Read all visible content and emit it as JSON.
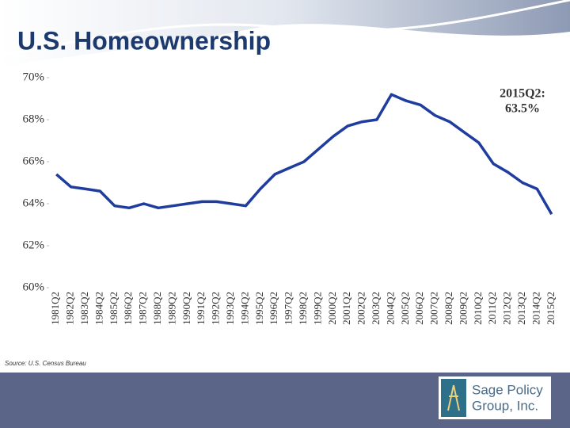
{
  "chart_data": {
    "type": "line",
    "title": "U.S. Homeownership",
    "categories": [
      "1981Q2",
      "1982Q2",
      "1983Q2",
      "1984Q2",
      "1985Q2",
      "1986Q2",
      "1987Q2",
      "1988Q2",
      "1989Q2",
      "1990Q2",
      "1991Q2",
      "1992Q2",
      "1993Q2",
      "1994Q2",
      "1995Q2",
      "1996Q2",
      "1997Q2",
      "1998Q2",
      "1999Q2",
      "2000Q2",
      "2001Q2",
      "2002Q2",
      "2003Q2",
      "2004Q2",
      "2005Q2",
      "2006Q2",
      "2007Q2",
      "2008Q2",
      "2009Q2",
      "2010Q2",
      "2011Q2",
      "2012Q2",
      "2013Q2",
      "2014Q2",
      "2015Q2"
    ],
    "values": [
      65.4,
      64.8,
      64.7,
      64.6,
      63.9,
      63.8,
      64.0,
      63.8,
      63.9,
      64.0,
      64.1,
      64.1,
      64.0,
      63.9,
      64.7,
      65.4,
      65.7,
      66.0,
      66.6,
      67.2,
      67.7,
      67.9,
      68.0,
      69.2,
      68.9,
      68.7,
      68.2,
      67.9,
      67.4,
      66.9,
      65.9,
      65.5,
      65.0,
      64.7,
      63.5
    ],
    "color": "#1f3d9e",
    "ylim": [
      60,
      70
    ],
    "yticks": [
      {
        "value": 60,
        "label": "60%"
      },
      {
        "value": 62,
        "label": "62%"
      },
      {
        "value": 64,
        "label": "64%"
      },
      {
        "value": 66,
        "label": "66%"
      },
      {
        "value": 68,
        "label": "68%"
      },
      {
        "value": 70,
        "label": "70%"
      }
    ],
    "annotation": [
      "2015Q2:",
      "63.5%"
    ],
    "source": "Source: U.S. Census Bureau"
  },
  "logo": [
    "Sage Policy",
    "Group, Inc."
  ]
}
